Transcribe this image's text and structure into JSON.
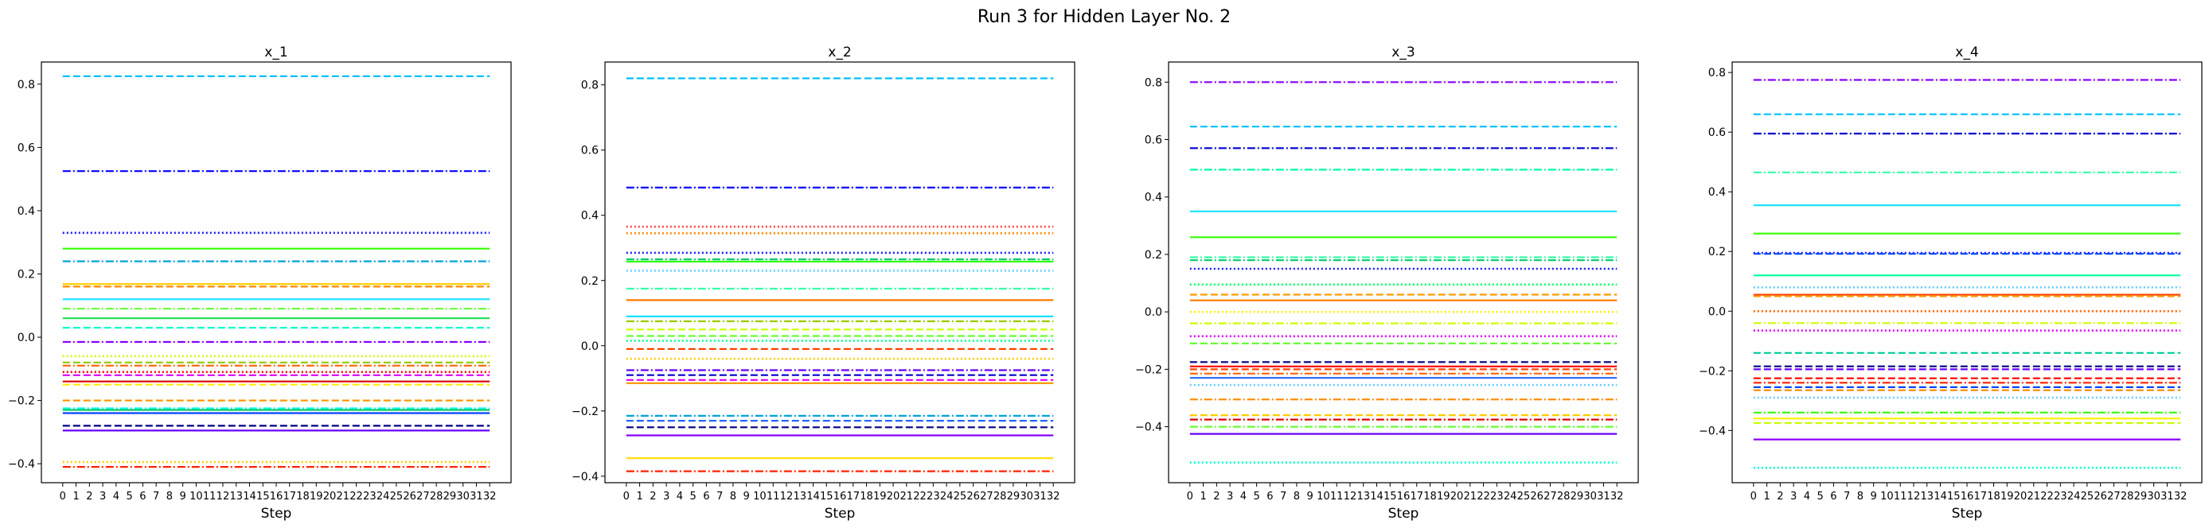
{
  "figure": {
    "suptitle": "Run 3 for Hidden Layer No. 2"
  },
  "chart_data": [
    {
      "type": "line",
      "title": "x_1",
      "xlabel": "Step",
      "ylabel": "",
      "x_ticks": [
        0,
        1,
        2,
        3,
        4,
        5,
        6,
        7,
        8,
        9,
        10,
        11,
        12,
        13,
        14,
        15,
        16,
        17,
        18,
        19,
        20,
        21,
        22,
        23,
        24,
        25,
        26,
        27,
        28,
        29,
        30,
        31,
        32
      ],
      "xlim": [
        -1.6,
        33.6
      ],
      "ylim": [
        -0.46,
        0.87
      ],
      "y_ticks": [
        -0.4,
        -0.2,
        0.0,
        0.2,
        0.4,
        0.6,
        0.8
      ],
      "y_tick_labels": [
        "−0.4",
        "−0.2",
        "0.0",
        "0.2",
        "0.4",
        "0.6",
        "0.8"
      ],
      "grid": false,
      "series": [
        {
          "values_constant": 0.825,
          "color": "#00bfff",
          "style": "dashed"
        },
        {
          "values_constant": 0.525,
          "color": "#0000ff",
          "style": "dashdot"
        },
        {
          "values_constant": 0.33,
          "color": "#1a1aff",
          "style": "dotted"
        },
        {
          "values_constant": 0.28,
          "color": "#33ff00",
          "style": "solid"
        },
        {
          "values_constant": 0.24,
          "color": "#00a3d9",
          "style": "dashdot"
        },
        {
          "values_constant": 0.168,
          "color": "#ffcc00",
          "style": "solid"
        },
        {
          "values_constant": 0.16,
          "color": "#ff8800",
          "style": "dashed"
        },
        {
          "values_constant": 0.12,
          "color": "#1ae1ff",
          "style": "solid"
        },
        {
          "values_constant": 0.09,
          "color": "#66ff33",
          "style": "dashdot"
        },
        {
          "values_constant": 0.06,
          "color": "#22dd55",
          "style": "solid"
        },
        {
          "values_constant": 0.03,
          "color": "#00ffcc",
          "style": "dashed"
        },
        {
          "values_constant": -0.015,
          "color": "#8800ff",
          "style": "dashdot"
        },
        {
          "values_constant": -0.06,
          "color": "#ccff00",
          "style": "dotted"
        },
        {
          "values_constant": -0.08,
          "color": "#99cc00",
          "style": "dashed"
        },
        {
          "values_constant": -0.09,
          "color": "#ff6600",
          "style": "dashdot"
        },
        {
          "values_constant": -0.11,
          "color": "#ff0000",
          "style": "dotted"
        },
        {
          "values_constant": -0.12,
          "color": "#dd00ff",
          "style": "dashed"
        },
        {
          "values_constant": -0.14,
          "color": "#dd0000",
          "style": "solid"
        },
        {
          "values_constant": -0.15,
          "color": "#ffee00",
          "style": "dashed"
        },
        {
          "values_constant": -0.2,
          "color": "#ff9900",
          "style": "dashed"
        },
        {
          "values_constant": -0.225,
          "color": "#00ffee",
          "style": "dashdot"
        },
        {
          "values_constant": -0.23,
          "color": "#00cc66",
          "style": "solid"
        },
        {
          "values_constant": -0.24,
          "color": "#0044ff",
          "style": "solid"
        },
        {
          "values_constant": -0.28,
          "color": "#000088",
          "style": "dashed"
        },
        {
          "values_constant": -0.295,
          "color": "#6600ff",
          "style": "solid"
        },
        {
          "values_constant": -0.395,
          "color": "#ffcc00",
          "style": "dotted"
        },
        {
          "values_constant": -0.41,
          "color": "#ff2200",
          "style": "dashdot"
        }
      ]
    },
    {
      "type": "line",
      "title": "x_2",
      "xlabel": "Step",
      "ylabel": "",
      "x_ticks": [
        0,
        1,
        2,
        3,
        4,
        5,
        6,
        7,
        8,
        9,
        10,
        11,
        12,
        13,
        14,
        15,
        16,
        17,
        18,
        19,
        20,
        21,
        22,
        23,
        24,
        25,
        26,
        27,
        28,
        29,
        30,
        31,
        32
      ],
      "xlim": [
        -1.6,
        33.6
      ],
      "ylim": [
        -0.42,
        0.87
      ],
      "y_ticks": [
        -0.4,
        -0.2,
        0.0,
        0.2,
        0.4,
        0.6,
        0.8
      ],
      "y_tick_labels": [
        "−0.4",
        "−0.2",
        "0.0",
        "0.2",
        "0.4",
        "0.6",
        "0.8"
      ],
      "grid": false,
      "series": [
        {
          "values_constant": 0.82,
          "color": "#00bfff",
          "style": "dashed"
        },
        {
          "values_constant": 0.485,
          "color": "#0000ff",
          "style": "dashdot"
        },
        {
          "values_constant": 0.365,
          "color": "#ff4444",
          "style": "dotted"
        },
        {
          "values_constant": 0.345,
          "color": "#ff8800",
          "style": "dotted"
        },
        {
          "values_constant": 0.285,
          "color": "#1a1aff",
          "style": "dotted"
        },
        {
          "values_constant": 0.265,
          "color": "#00cc66",
          "style": "dashdot"
        },
        {
          "values_constant": 0.258,
          "color": "#33ff00",
          "style": "solid"
        },
        {
          "values_constant": 0.23,
          "color": "#66ccff",
          "style": "dotted"
        },
        {
          "values_constant": 0.175,
          "color": "#33ffaa",
          "style": "dashdot"
        },
        {
          "values_constant": 0.14,
          "color": "#ff7700",
          "style": "solid"
        },
        {
          "values_constant": 0.09,
          "color": "#1ae1ff",
          "style": "solid"
        },
        {
          "values_constant": 0.075,
          "color": "#99cc00",
          "style": "dashdot"
        },
        {
          "values_constant": 0.05,
          "color": "#ccff00",
          "style": "dashed"
        },
        {
          "values_constant": 0.03,
          "color": "#66ff33",
          "style": "dashed"
        },
        {
          "values_constant": 0.015,
          "color": "#00ff99",
          "style": "dotted"
        },
        {
          "values_constant": -0.01,
          "color": "#ff4400",
          "style": "dashed"
        },
        {
          "values_constant": -0.04,
          "color": "#ffcc00",
          "style": "dotted"
        },
        {
          "values_constant": -0.075,
          "color": "#6600ff",
          "style": "dashdot"
        },
        {
          "values_constant": -0.09,
          "color": "#0000cc",
          "style": "dashed"
        },
        {
          "values_constant": -0.105,
          "color": "#dd00ff",
          "style": "dashed"
        },
        {
          "values_constant": -0.115,
          "color": "#ff9900",
          "style": "solid"
        },
        {
          "values_constant": -0.215,
          "color": "#00a3d9",
          "style": "dashdot"
        },
        {
          "values_constant": -0.23,
          "color": "#2266ff",
          "style": "dashed"
        },
        {
          "values_constant": -0.25,
          "color": "#000088",
          "style": "dashed"
        },
        {
          "values_constant": -0.275,
          "color": "#8800ff",
          "style": "solid"
        },
        {
          "values_constant": -0.345,
          "color": "#ffdd00",
          "style": "solid"
        },
        {
          "values_constant": -0.385,
          "color": "#ff2200",
          "style": "dashdot"
        }
      ]
    },
    {
      "type": "line",
      "title": "x_3",
      "xlabel": "Step",
      "ylabel": "",
      "x_ticks": [
        0,
        1,
        2,
        3,
        4,
        5,
        6,
        7,
        8,
        9,
        10,
        11,
        12,
        13,
        14,
        15,
        16,
        17,
        18,
        19,
        20,
        21,
        22,
        23,
        24,
        25,
        26,
        27,
        28,
        29,
        30,
        31,
        32
      ],
      "xlim": [
        -1.6,
        33.6
      ],
      "ylim": [
        -0.595,
        0.87
      ],
      "y_ticks": [
        -0.4,
        -0.2,
        0.0,
        0.2,
        0.4,
        0.6,
        0.8
      ],
      "y_tick_labels": [
        "−0.4",
        "−0.2",
        "0.0",
        "0.2",
        "0.4",
        "0.6",
        "0.8"
      ],
      "grid": false,
      "series": [
        {
          "values_constant": 0.8,
          "color": "#8800ff",
          "style": "dashdot"
        },
        {
          "values_constant": 0.645,
          "color": "#00bfff",
          "style": "dashed"
        },
        {
          "values_constant": 0.57,
          "color": "#0000cc",
          "style": "dashdot"
        },
        {
          "values_constant": 0.495,
          "color": "#00ffaa",
          "style": "dashdot"
        },
        {
          "values_constant": 0.35,
          "color": "#1ae1ff",
          "style": "solid"
        },
        {
          "values_constant": 0.26,
          "color": "#33ff00",
          "style": "solid"
        },
        {
          "values_constant": 0.19,
          "color": "#33ffaa",
          "style": "dashdot"
        },
        {
          "values_constant": 0.18,
          "color": "#00cc66",
          "style": "dashdot"
        },
        {
          "values_constant": 0.15,
          "color": "#1a1aff",
          "style": "dotted"
        },
        {
          "values_constant": 0.095,
          "color": "#00ff66",
          "style": "dotted"
        },
        {
          "values_constant": 0.06,
          "color": "#ff9900",
          "style": "dashed"
        },
        {
          "values_constant": 0.04,
          "color": "#ff7700",
          "style": "solid"
        },
        {
          "values_constant": 0.0,
          "color": "#ffee00",
          "style": "dotted"
        },
        {
          "values_constant": -0.04,
          "color": "#ccff00",
          "style": "dashdot"
        },
        {
          "values_constant": -0.085,
          "color": "#dd00ff",
          "style": "dotted"
        },
        {
          "values_constant": -0.11,
          "color": "#66ff33",
          "style": "dashed"
        },
        {
          "values_constant": -0.175,
          "color": "#000088",
          "style": "dashed"
        },
        {
          "values_constant": -0.19,
          "color": "#ff0000",
          "style": "solid"
        },
        {
          "values_constant": -0.2,
          "color": "#ff4400",
          "style": "dashed"
        },
        {
          "values_constant": -0.215,
          "color": "#ff6600",
          "style": "dashdot"
        },
        {
          "values_constant": -0.23,
          "color": "#2266ff",
          "style": "solid"
        },
        {
          "values_constant": -0.255,
          "color": "#66ccff",
          "style": "dotted"
        },
        {
          "values_constant": -0.305,
          "color": "#ff8800",
          "style": "dashdot"
        },
        {
          "values_constant": -0.36,
          "color": "#ffcc00",
          "style": "dashed"
        },
        {
          "values_constant": -0.375,
          "color": "#dd0000",
          "style": "dashdot"
        },
        {
          "values_constant": -0.4,
          "color": "#66ff33",
          "style": "dashdot"
        },
        {
          "values_constant": -0.425,
          "color": "#6600ff",
          "style": "solid"
        },
        {
          "values_constant": -0.525,
          "color": "#00ffcc",
          "style": "dotted"
        }
      ]
    },
    {
      "type": "line",
      "title": "x_4",
      "xlabel": "Step",
      "ylabel": "",
      "x_ticks": [
        0,
        1,
        2,
        3,
        4,
        5,
        6,
        7,
        8,
        9,
        10,
        11,
        12,
        13,
        14,
        15,
        16,
        17,
        18,
        19,
        20,
        21,
        22,
        23,
        24,
        25,
        26,
        27,
        28,
        29,
        30,
        31,
        32
      ],
      "xlim": [
        -1.6,
        33.6
      ],
      "ylim": [
        -0.575,
        0.835
      ],
      "y_ticks": [
        -0.4,
        -0.2,
        0.0,
        0.2,
        0.4,
        0.6,
        0.8
      ],
      "y_tick_labels": [
        "−0.4",
        "−0.2",
        "0.0",
        "0.2",
        "0.4",
        "0.6",
        "0.8"
      ],
      "grid": false,
      "series": [
        {
          "values_constant": 0.775,
          "color": "#8800ff",
          "style": "dashdot"
        },
        {
          "values_constant": 0.66,
          "color": "#00bfff",
          "style": "dashed"
        },
        {
          "values_constant": 0.595,
          "color": "#0000cc",
          "style": "dashdot"
        },
        {
          "values_constant": 0.465,
          "color": "#33ffaa",
          "style": "dashdot"
        },
        {
          "values_constant": 0.355,
          "color": "#1ae1ff",
          "style": "solid"
        },
        {
          "values_constant": 0.26,
          "color": "#33ff00",
          "style": "solid"
        },
        {
          "values_constant": 0.195,
          "color": "#1a1aff",
          "style": "dotted"
        },
        {
          "values_constant": 0.192,
          "color": "#0044ff",
          "style": "dashed"
        },
        {
          "values_constant": 0.12,
          "color": "#00ff99",
          "style": "solid"
        },
        {
          "values_constant": 0.08,
          "color": "#66ccff",
          "style": "dotted"
        },
        {
          "values_constant": 0.055,
          "color": "#ff4400",
          "style": "solid"
        },
        {
          "values_constant": 0.05,
          "color": "#ff9900",
          "style": "dashed"
        },
        {
          "values_constant": 0.0,
          "color": "#ff6600",
          "style": "dotted"
        },
        {
          "values_constant": -0.04,
          "color": "#ccff00",
          "style": "dashdot"
        },
        {
          "values_constant": -0.065,
          "color": "#dd00ff",
          "style": "dotted"
        },
        {
          "values_constant": -0.14,
          "color": "#00cc99",
          "style": "dashed"
        },
        {
          "values_constant": -0.185,
          "color": "#000088",
          "style": "dashed"
        },
        {
          "values_constant": -0.195,
          "color": "#6600ff",
          "style": "dashed"
        },
        {
          "values_constant": -0.225,
          "color": "#ff0000",
          "style": "dashed"
        },
        {
          "values_constant": -0.24,
          "color": "#ff2200",
          "style": "dashdot"
        },
        {
          "values_constant": -0.255,
          "color": "#0044ff",
          "style": "dashed"
        },
        {
          "values_constant": -0.265,
          "color": "#ff8800",
          "style": "dashed"
        },
        {
          "values_constant": -0.29,
          "color": "#66ccff",
          "style": "dotted"
        },
        {
          "values_constant": -0.34,
          "color": "#33ff00",
          "style": "dashdot"
        },
        {
          "values_constant": -0.36,
          "color": "#ffee00",
          "style": "solid"
        },
        {
          "values_constant": -0.375,
          "color": "#ccff00",
          "style": "dashed"
        },
        {
          "values_constant": -0.43,
          "color": "#8800ff",
          "style": "solid"
        },
        {
          "values_constant": -0.525,
          "color": "#00ffcc",
          "style": "dotted"
        }
      ]
    }
  ]
}
